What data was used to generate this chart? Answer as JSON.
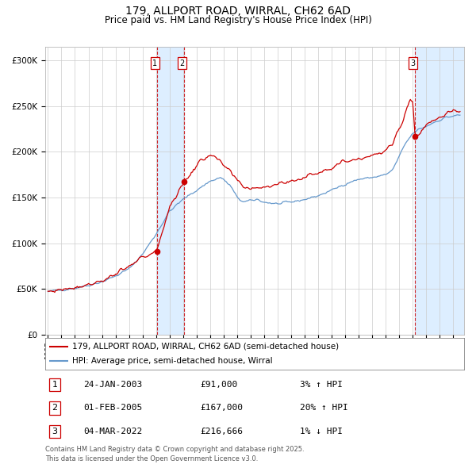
{
  "title": "179, ALLPORT ROAD, WIRRAL, CH62 6AD",
  "subtitle": "Price paid vs. HM Land Registry's House Price Index (HPI)",
  "title_fontsize": 10,
  "subtitle_fontsize": 8.5,
  "background_color": "#ffffff",
  "plot_bg_color": "#ffffff",
  "grid_color": "#cccccc",
  "sale1": {
    "date_num": 2003.07,
    "price": 91000,
    "label": "1",
    "date_str": "24-JAN-2003",
    "pct": "3%",
    "dir": "↑"
  },
  "sale2": {
    "date_num": 2005.09,
    "price": 167000,
    "label": "2",
    "date_str": "01-FEB-2005",
    "pct": "20%",
    "dir": "↑"
  },
  "sale3": {
    "date_num": 2022.17,
    "price": 216666,
    "label": "3",
    "date_str": "04-MAR-2022",
    "pct": "1%",
    "dir": "↓"
  },
  "red_line_color": "#cc0000",
  "blue_line_color": "#6699cc",
  "shade_color": "#ddeeff",
  "vline_color": "#cc0000",
  "dot_color": "#cc0000",
  "legend_label_red": "179, ALLPORT ROAD, WIRRAL, CH62 6AD (semi-detached house)",
  "legend_label_blue": "HPI: Average price, semi-detached house, Wirral",
  "footer1": "Contains HM Land Registry data © Crown copyright and database right 2025.",
  "footer2": "This data is licensed under the Open Government Licence v3.0.",
  "ylabel_ticks": [
    "£0",
    "£50K",
    "£100K",
    "£150K",
    "£200K",
    "£250K",
    "£300K"
  ],
  "ytick_vals": [
    0,
    50000,
    100000,
    150000,
    200000,
    250000,
    300000
  ],
  "ylim": [
    0,
    315000
  ],
  "xlim_start": 1994.8,
  "xlim_end": 2025.8
}
